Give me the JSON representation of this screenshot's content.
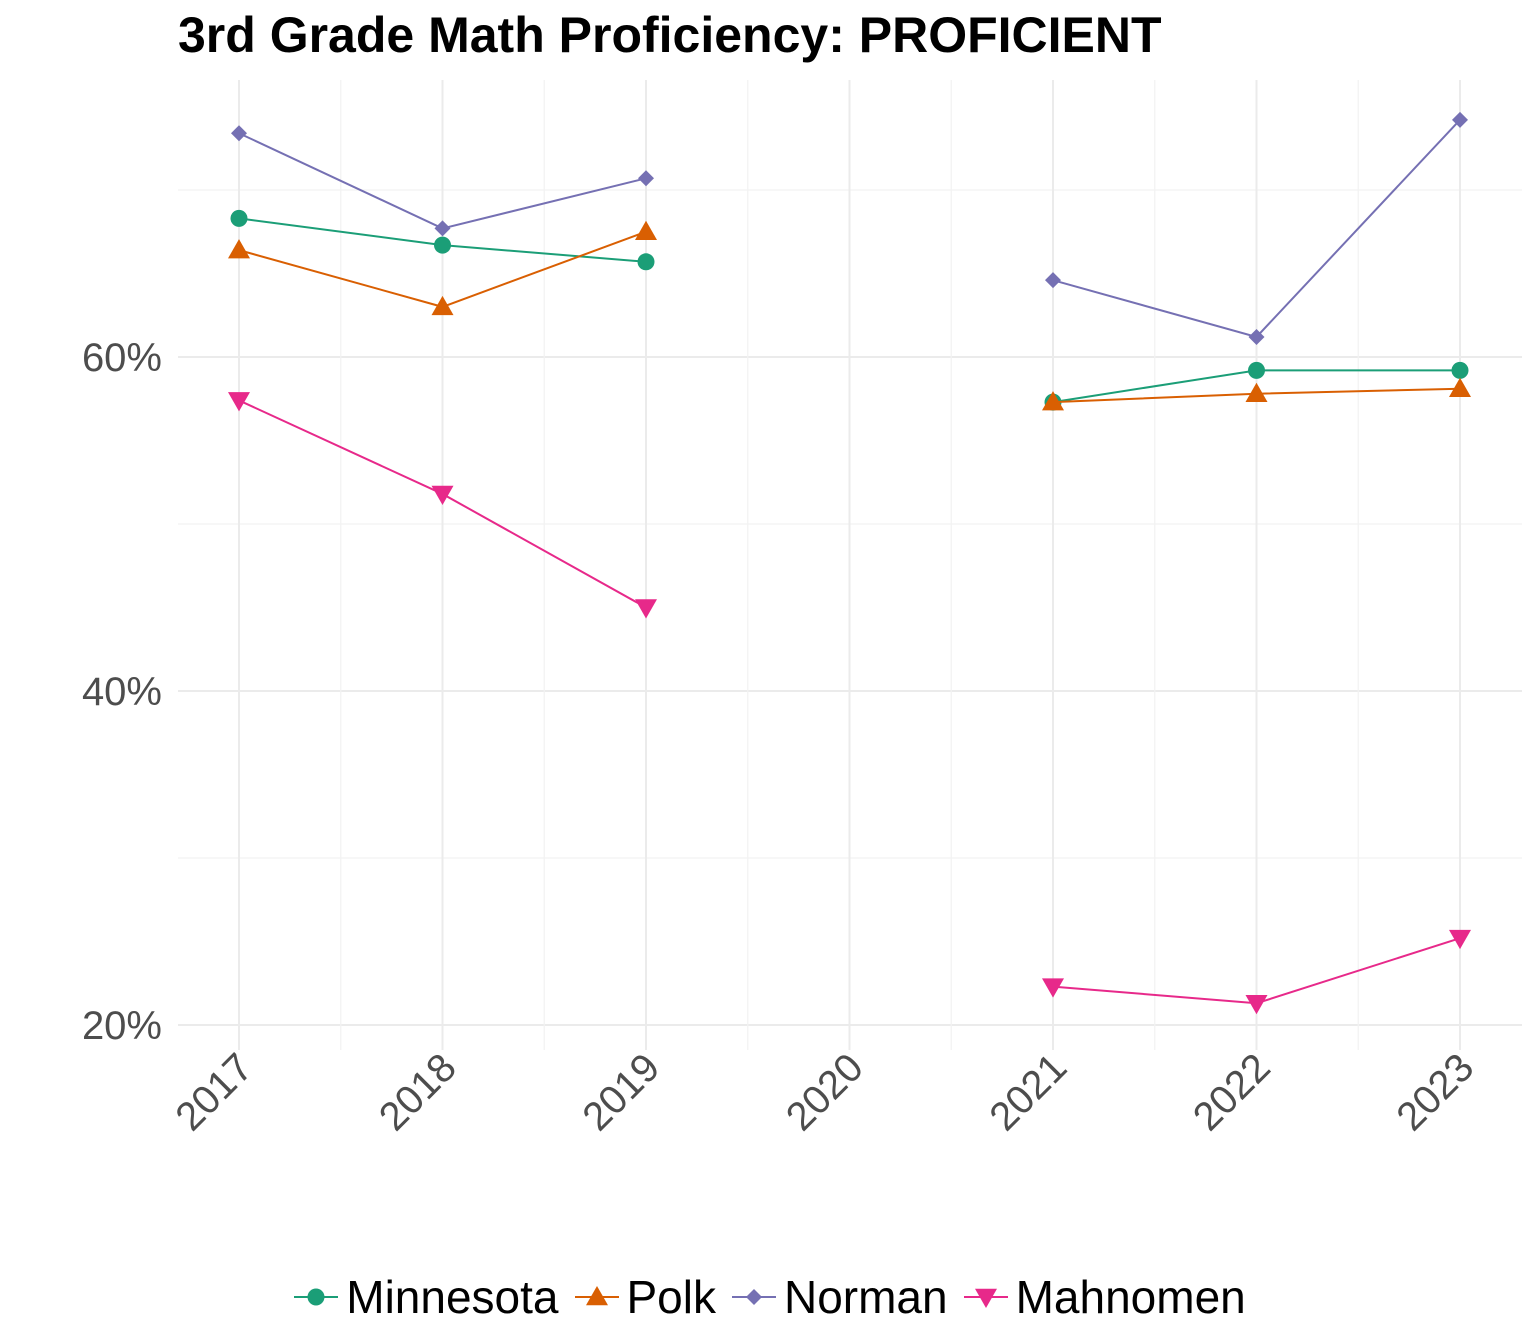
{
  "chart_data": {
    "type": "line",
    "title": "3rd Grade Math Proficiency: PROFICIENT",
    "xlabel": "",
    "ylabel": "",
    "x": [
      "2017",
      "2018",
      "2019",
      "2020",
      "2021",
      "2022",
      "2023"
    ],
    "y_ticks": [
      20,
      40,
      60
    ],
    "y_tick_labels": [
      "20%",
      "40%",
      "60%"
    ],
    "ylim": [
      19,
      71
    ],
    "grid": true,
    "legend_position": "bottom",
    "series": [
      {
        "name": "Minnesota",
        "color": "#1B9E77",
        "marker": "circle",
        "values": [
          68.3,
          66.7,
          65.7,
          null,
          57.3,
          59.2,
          59.2
        ]
      },
      {
        "name": "Polk",
        "color": "#D95F02",
        "marker": "triangle-up",
        "values": [
          66.4,
          63.0,
          67.5,
          null,
          57.3,
          57.8,
          58.1
        ]
      },
      {
        "name": "Norman",
        "color": "#7570B3",
        "marker": "diamond",
        "values": [
          73.4,
          67.7,
          70.7,
          null,
          64.6,
          61.2,
          74.2
        ]
      },
      {
        "name": "Mahnomen",
        "color": "#E7298A",
        "marker": "triangle-down",
        "values": [
          57.4,
          51.8,
          45.0,
          null,
          22.3,
          21.3,
          25.2
        ]
      }
    ]
  }
}
